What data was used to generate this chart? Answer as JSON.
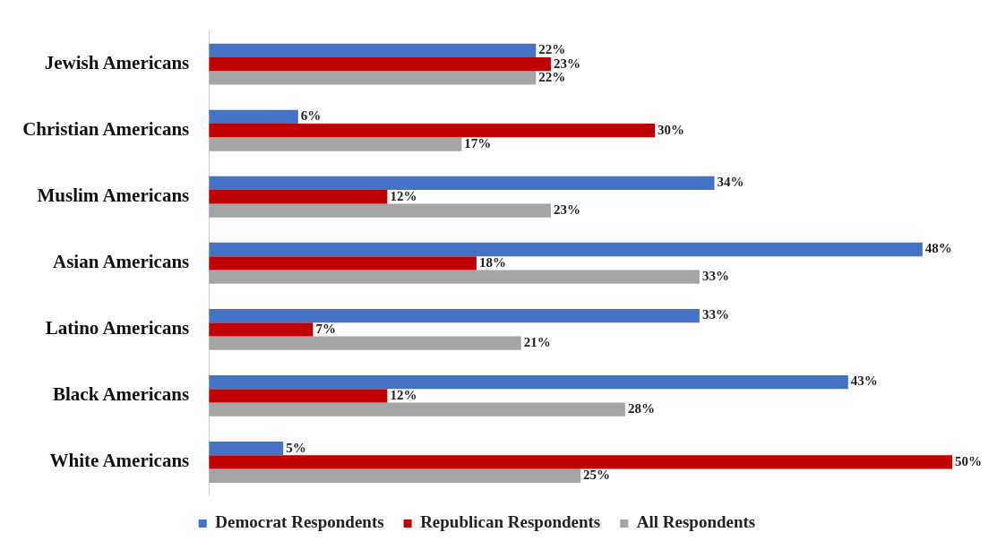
{
  "chart_data": {
    "type": "bar",
    "orientation": "horizontal",
    "legend": "bottom",
    "categories": [
      "Jewish Americans",
      "Christian Americans",
      "Muslim Americans",
      "Asian Americans",
      "Latino Americans",
      "Black Americans",
      "White Americans"
    ],
    "series": [
      {
        "name": "Democrat Respondents",
        "color": "#4472c4",
        "values": [
          22,
          6,
          34,
          48,
          33,
          43,
          5
        ],
        "value_labels": [
          "22%",
          "6%",
          "34%",
          "48%",
          "33%",
          "43%",
          "5%"
        ]
      },
      {
        "name": "Republican Respondents",
        "color": "#c00000",
        "values": [
          23,
          30,
          12,
          18,
          7,
          12,
          50
        ],
        "value_labels": [
          "23%",
          "30%",
          "12%",
          "18%",
          "7%",
          "12%",
          "50%"
        ]
      },
      {
        "name": "All Respondents",
        "color": "#a5a5a5",
        "values": [
          22,
          17,
          23,
          33,
          21,
          28,
          25
        ],
        "value_labels": [
          "22%",
          "17%",
          "23%",
          "33%",
          "21%",
          "28%",
          "25%"
        ]
      }
    ]
  }
}
